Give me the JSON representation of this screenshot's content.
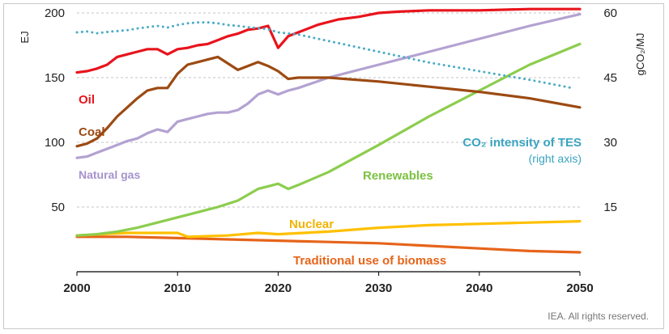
{
  "chart_data": {
    "type": "line",
    "title": "",
    "xlabel": "",
    "ylabel": "EJ",
    "y2label": "gCO₂/MJ",
    "xlim": [
      2000,
      2050
    ],
    "ylim": [
      0,
      210
    ],
    "y2lim": [
      0,
      63
    ],
    "xticks": [
      2000,
      2010,
      2020,
      2030,
      2040,
      2050
    ],
    "yticks": [
      50,
      100,
      150,
      200
    ],
    "y2ticks": [
      15,
      30,
      45,
      60
    ],
    "grid": "horizontal dashed",
    "credit": "IEA. All rights reserved.",
    "series": [
      {
        "name": "Oil",
        "label": "Oil",
        "color": "#e8141c",
        "axis": "left",
        "style": "solid",
        "x": [
          2000,
          2001,
          2002,
          2003,
          2004,
          2005,
          2006,
          2007,
          2008,
          2009,
          2010,
          2011,
          2012,
          2013,
          2014,
          2015,
          2016,
          2017,
          2018,
          2019,
          2020,
          2021,
          2022,
          2024,
          2026,
          2028,
          2030,
          2032,
          2035,
          2040,
          2045,
          2050
        ],
        "values": [
          154,
          155,
          157,
          160,
          166,
          168,
          170,
          172,
          172,
          168,
          172,
          173,
          175,
          176,
          179,
          182,
          184,
          187,
          188,
          190,
          173,
          182,
          185,
          191,
          195,
          197,
          200,
          201,
          202,
          202,
          203,
          203
        ]
      },
      {
        "name": "Coal",
        "label": "Coal",
        "color": "#9c4a12",
        "axis": "left",
        "style": "solid",
        "x": [
          2000,
          2001,
          2002,
          2003,
          2004,
          2005,
          2006,
          2007,
          2008,
          2009,
          2010,
          2011,
          2012,
          2013,
          2014,
          2015,
          2016,
          2017,
          2018,
          2019,
          2020,
          2021,
          2022,
          2025,
          2030,
          2035,
          2040,
          2045,
          2050
        ],
        "values": [
          97,
          99,
          103,
          111,
          120,
          127,
          134,
          140,
          142,
          142,
          153,
          160,
          162,
          164,
          166,
          161,
          156,
          159,
          162,
          159,
          155,
          149,
          150,
          150,
          147,
          143,
          139,
          134,
          127
        ]
      },
      {
        "name": "Natural gas",
        "label": "Natural gas",
        "color": "#b3a2d1",
        "axis": "left",
        "style": "solid",
        "x": [
          2000,
          2001,
          2002,
          2003,
          2004,
          2005,
          2006,
          2007,
          2008,
          2009,
          2010,
          2011,
          2012,
          2013,
          2014,
          2015,
          2016,
          2017,
          2018,
          2019,
          2020,
          2021,
          2022,
          2025,
          2030,
          2035,
          2040,
          2045,
          2050
        ],
        "values": [
          88,
          89,
          92,
          95,
          98,
          101,
          103,
          107,
          110,
          108,
          116,
          118,
          120,
          122,
          123,
          123,
          125,
          130,
          137,
          140,
          137,
          140,
          142,
          150,
          160,
          170,
          180,
          190,
          199
        ]
      },
      {
        "name": "Renewables",
        "label": "Renewables",
        "color": "#8ccd4e",
        "axis": "left",
        "style": "solid",
        "x": [
          2000,
          2002,
          2004,
          2006,
          2008,
          2010,
          2012,
          2014,
          2016,
          2018,
          2019,
          2020,
          2021,
          2022,
          2025,
          2030,
          2035,
          2040,
          2045,
          2050
        ],
        "values": [
          28,
          29,
          31,
          34,
          38,
          42,
          46,
          50,
          55,
          64,
          66,
          68,
          64,
          67,
          77,
          98,
          120,
          140,
          160,
          176
        ]
      },
      {
        "name": "Nuclear",
        "label": "Nuclear",
        "color": "#ffc000",
        "axis": "left",
        "style": "solid",
        "x": [
          2000,
          2005,
          2010,
          2011,
          2015,
          2018,
          2020,
          2025,
          2030,
          2035,
          2040,
          2045,
          2050
        ],
        "values": [
          28,
          30,
          30,
          27,
          28,
          30,
          29,
          31,
          34,
          36,
          37,
          38,
          39
        ]
      },
      {
        "name": "Traditional use of biomass",
        "label": "Traditional use of biomass",
        "color": "#e6641a",
        "axis": "left",
        "style": "solid",
        "x": [
          2000,
          2005,
          2010,
          2015,
          2020,
          2025,
          2030,
          2035,
          2040,
          2045,
          2050
        ],
        "values": [
          27,
          27,
          26,
          25,
          24,
          23,
          22,
          20,
          18,
          16,
          15
        ]
      },
      {
        "name": "CO2 intensity of TES",
        "label": "CO₂ intensity of TES",
        "sublabel": "(right axis)",
        "color": "#4bacc6",
        "axis": "right",
        "style": "dotted",
        "x": [
          2000,
          2001,
          2002,
          2003,
          2004,
          2005,
          2006,
          2007,
          2008,
          2009,
          2010,
          2011,
          2012,
          2013,
          2014,
          2015,
          2016,
          2017,
          2018,
          2019,
          2020,
          2022,
          2025,
          2030,
          2035,
          2040,
          2045,
          2049
        ],
        "values": [
          55.5,
          55.7,
          55.3,
          55.6,
          55.8,
          56.0,
          56.4,
          56.7,
          57.0,
          56.6,
          57.2,
          57.6,
          57.8,
          57.8,
          57.6,
          57.2,
          57.0,
          56.7,
          56.5,
          56.2,
          55.5,
          55.0,
          53.5,
          51.0,
          48.5,
          46.5,
          44.5,
          42.7
        ]
      }
    ]
  }
}
